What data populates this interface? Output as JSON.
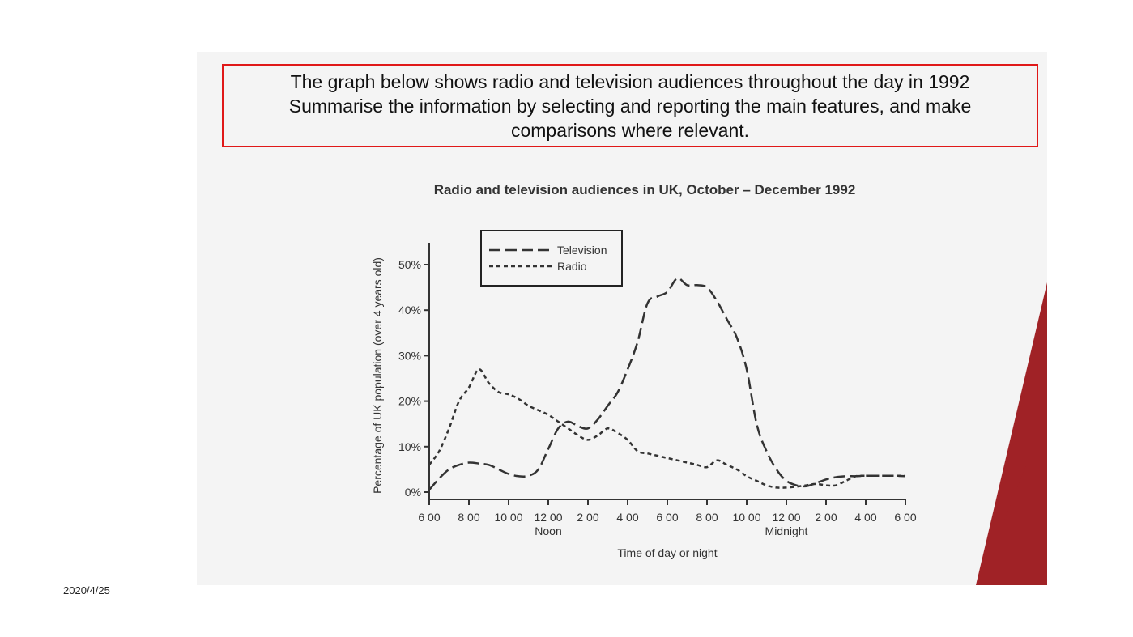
{
  "task": {
    "line1": "The graph below shows radio and television audiences throughout the day in 1992",
    "line2": "Summarise the information by selecting and reporting the main features, and make",
    "line3": "comparisons where relevant."
  },
  "footer": {
    "date": "2020/4/25"
  },
  "colors": {
    "task_border": "#e01818",
    "brand_red": "#a02226",
    "line": "#333333",
    "slide_bg": "#f4f4f4"
  },
  "chart_data": {
    "type": "line",
    "title": "Radio and television audiences in UK, October – December 1992",
    "xlabel": "Time of day or night",
    "ylabel": "Percentage of UK population (over 4 years old)",
    "x_ticks": [
      "6 00",
      "8 00",
      "10 00",
      "12 00",
      "2 00",
      "4 00",
      "6 00",
      "8 00",
      "10 00",
      "12 00",
      "2 00",
      "4 00",
      "6 00"
    ],
    "x_sublabels": {
      "12 00 (noon)": "Noon",
      "12 00 (midnight)": "Midnight"
    },
    "x_sublabel_list": [
      {
        "tick_index": 3,
        "text": "Noon"
      },
      {
        "tick_index": 9,
        "text": "Midnight"
      }
    ],
    "y_ticks": [
      "0%",
      "10%",
      "20%",
      "30%",
      "40%",
      "50%"
    ],
    "ylim": [
      0,
      55
    ],
    "x_unit": "hours after 6:00",
    "xlim": [
      0,
      24
    ],
    "legend": {
      "placement": "top-left",
      "entries": [
        "Television",
        "Radio"
      ]
    },
    "series": [
      {
        "name": "Television",
        "style": "long-dash",
        "x": [
          0,
          0.5,
          1,
          1.5,
          2,
          2.5,
          3,
          3.5,
          4,
          4.5,
          5,
          5.5,
          6,
          6.5,
          7,
          7.5,
          8,
          8.5,
          9,
          9.5,
          10,
          10.5,
          11,
          11.5,
          12,
          12.5,
          13,
          13.5,
          14,
          14.5,
          15,
          15.5,
          16,
          16.5,
          17,
          17.5,
          18,
          18.5,
          19,
          19.5,
          20,
          20.5,
          21,
          21.5,
          22,
          22.5,
          23,
          23.5,
          24
        ],
        "values": [
          0.5,
          3,
          5,
          6,
          6.5,
          6.3,
          6,
          5,
          4,
          3.5,
          3.6,
          5,
          9.5,
          14,
          15.5,
          14.5,
          14,
          16,
          19,
          22,
          27,
          33,
          41.5,
          43,
          44,
          47,
          45.5,
          45.5,
          45,
          42,
          38,
          34,
          27,
          15,
          9,
          5,
          2.5,
          1.5,
          1.3,
          2,
          2.8,
          3.3,
          3.5,
          3.5,
          3.6,
          3.6,
          3.6,
          3.6,
          3.5
        ]
      },
      {
        "name": "Radio",
        "style": "short-dash",
        "x": [
          0,
          0.5,
          1,
          1.5,
          2,
          2.5,
          3,
          3.5,
          4,
          4.5,
          5,
          5.5,
          6,
          6.5,
          7,
          7.5,
          8,
          8.5,
          9,
          9.5,
          10,
          10.5,
          11,
          11.5,
          12,
          12.5,
          13,
          13.5,
          14,
          14.5,
          15,
          15.5,
          16,
          16.5,
          17,
          17.5,
          18,
          18.5,
          19,
          19.5,
          20,
          20.5,
          21,
          21.5,
          22,
          22.5,
          23,
          23.5,
          24
        ],
        "values": [
          6,
          9,
          14,
          20,
          23,
          27,
          24,
          22,
          21.5,
          20.5,
          19,
          18,
          17,
          15.5,
          14,
          12.5,
          11.5,
          12.5,
          14,
          13,
          11.5,
          9,
          8.5,
          8,
          7.5,
          7,
          6.5,
          6,
          5.5,
          7,
          6,
          5,
          3.5,
          2.5,
          1.5,
          1,
          1,
          1.2,
          1.5,
          1.8,
          1.5,
          1.5,
          2.5,
          3.5,
          3.6,
          3.6,
          3.6,
          3.6,
          3.6
        ]
      }
    ],
    "grid": false
  }
}
